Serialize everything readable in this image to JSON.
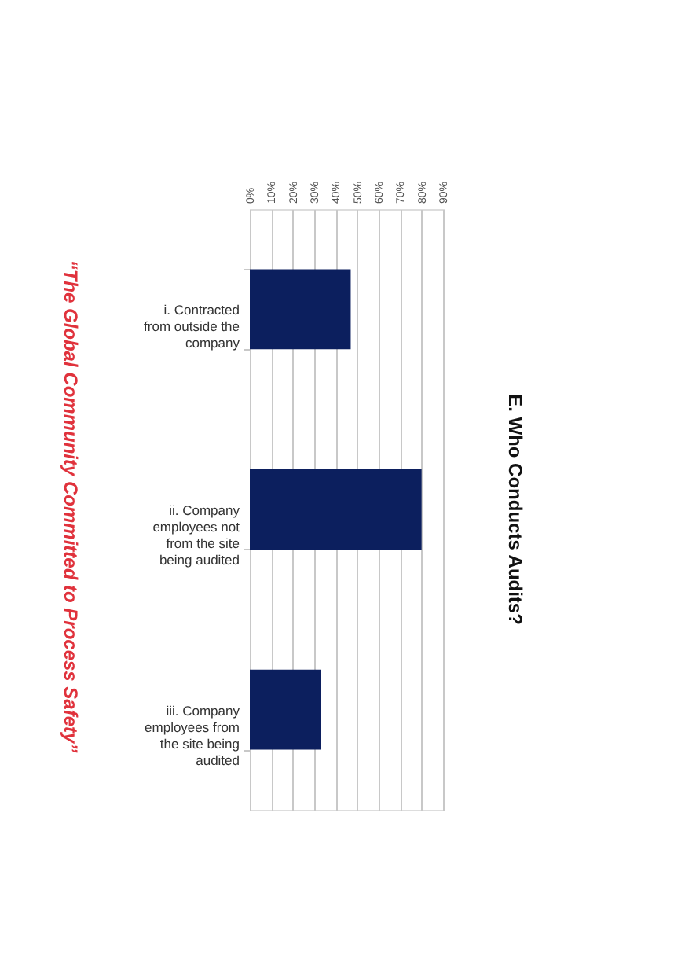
{
  "chart_data": {
    "type": "bar",
    "orientation": "horizontal",
    "title": "E. Who Conducts Audits?",
    "categories": [
      "i. Contracted from outside the company",
      "ii. Company employees not from the site being audited",
      "iii. Company employees from the site being audited"
    ],
    "values": [
      47,
      80,
      33
    ],
    "color": "#0c1f5e",
    "xlim": [
      0,
      90
    ],
    "xticks": [
      {
        "value": 0,
        "label": "0%"
      },
      {
        "value": 10,
        "label": "10%"
      },
      {
        "value": 20,
        "label": "20%"
      },
      {
        "value": 30,
        "label": "30%"
      },
      {
        "value": 40,
        "label": "40%"
      },
      {
        "value": 50,
        "label": "50%"
      },
      {
        "value": 60,
        "label": "60%"
      },
      {
        "value": 70,
        "label": "70%"
      },
      {
        "value": 80,
        "label": "80%"
      },
      {
        "value": 90,
        "label": "90%"
      }
    ],
    "grid": "x",
    "annotations": [
      "“The Global Community Committed to Process Safety”"
    ]
  }
}
